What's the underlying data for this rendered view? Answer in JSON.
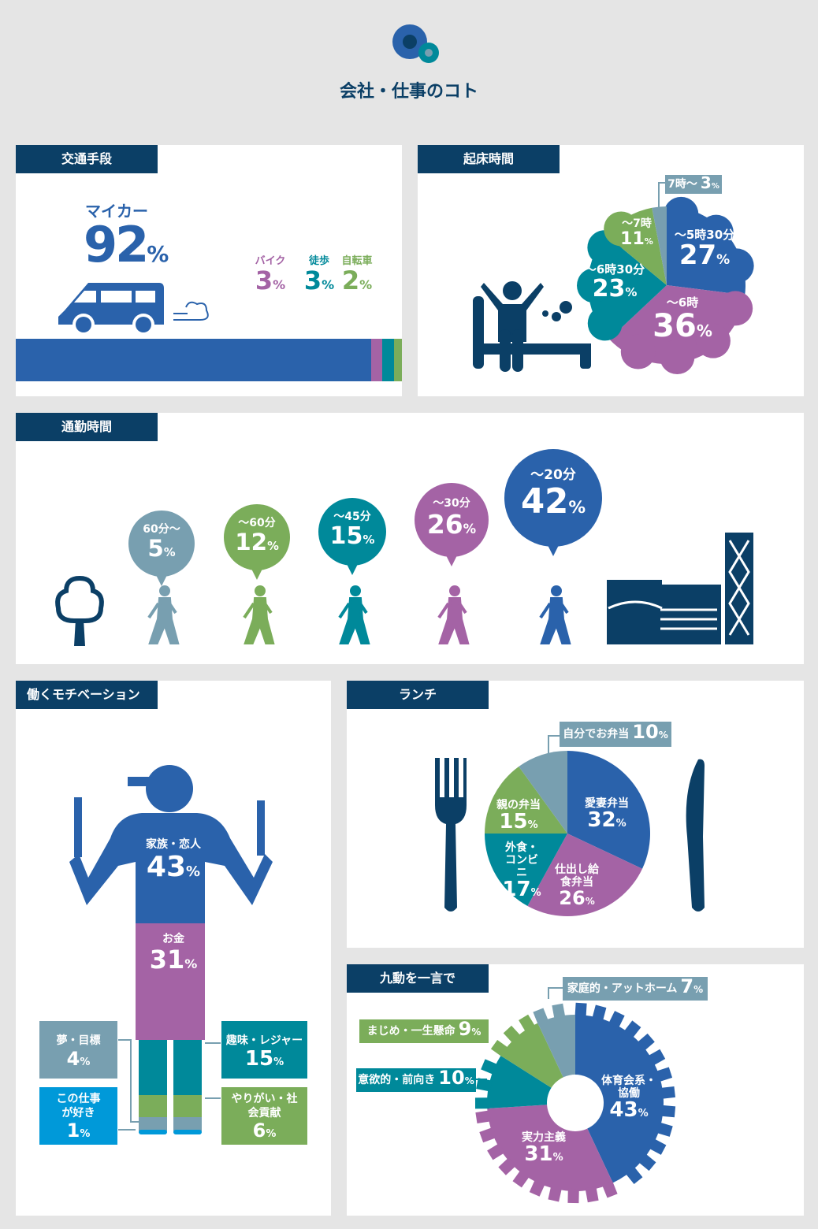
{
  "title": "会社・仕事のコト",
  "colors": {
    "navy": "#0b3f66",
    "blue": "#2a62ab",
    "purple": "#a463a5",
    "teal": "#00899a",
    "green": "#7bad5a",
    "grayblue": "#789fb0",
    "sky": "#0099d9"
  },
  "transport": {
    "heading": "交通手段",
    "main": {
      "label": "マイカー",
      "value": "92"
    },
    "items": [
      {
        "label": "バイク",
        "value": "3"
      },
      {
        "label": "徒歩",
        "value": "3"
      },
      {
        "label": "自転車",
        "value": "2"
      }
    ],
    "bar": [
      92,
      3,
      3,
      2
    ]
  },
  "wake": {
    "heading": "起床時間",
    "slices": [
      {
        "label": "〜5時30分",
        "value": 27,
        "color": "#2a62ab"
      },
      {
        "label": "〜6時",
        "value": 36,
        "color": "#a463a5"
      },
      {
        "label": "〜6時30分",
        "value": 23,
        "color": "#00899a"
      },
      {
        "label": "〜7時",
        "value": 11,
        "color": "#7bad5a"
      },
      {
        "label": "7時〜",
        "value": 3,
        "color": "#789fb0"
      }
    ]
  },
  "commute": {
    "heading": "通勤時間",
    "bubbles": [
      {
        "label": "60分〜",
        "value": "5",
        "color": "#789fb0"
      },
      {
        "label": "〜60分",
        "value": "12",
        "color": "#7bad5a"
      },
      {
        "label": "〜45分",
        "value": "15",
        "color": "#00899a"
      },
      {
        "label": "〜30分",
        "value": "26",
        "color": "#a463a5"
      },
      {
        "label": "〜20分",
        "value": "42",
        "color": "#2a62ab"
      }
    ]
  },
  "motivation": {
    "heading": "働くモチベーション",
    "items": [
      {
        "label": "家族・恋人",
        "value": "43"
      },
      {
        "label": "お金",
        "value": "31"
      },
      {
        "label": "趣味・レジャー",
        "value": "15"
      },
      {
        "label": "やりがい・社会貢献",
        "value": "6"
      },
      {
        "label": "夢・目標",
        "value": "4"
      },
      {
        "label": "この仕事が好き",
        "value": "1"
      }
    ]
  },
  "lunch": {
    "heading": "ランチ",
    "slices": [
      {
        "label": "愛妻弁当",
        "value": 32,
        "color": "#2a62ab"
      },
      {
        "label": "仕出し給食弁当",
        "value": 26,
        "color": "#a463a5"
      },
      {
        "label": "外食・コンビニ",
        "value": 17,
        "color": "#00899a"
      },
      {
        "label": "親の弁当",
        "value": 15,
        "color": "#7bad5a"
      },
      {
        "label": "自分でお弁当",
        "value": 10,
        "color": "#789fb0"
      }
    ]
  },
  "word": {
    "heading": "九動を一言で",
    "slices": [
      {
        "label": "体育会系・協働",
        "value": 43,
        "color": "#2a62ab"
      },
      {
        "label": "実力主義",
        "value": 31,
        "color": "#a463a5"
      },
      {
        "label": "意欲的・前向き",
        "value": 10,
        "color": "#00899a"
      },
      {
        "label": "まじめ・一生懸命",
        "value": 9,
        "color": "#7bad5a"
      },
      {
        "label": "家庭的・アットホーム",
        "value": 7,
        "color": "#789fb0"
      }
    ]
  },
  "pct": "%"
}
